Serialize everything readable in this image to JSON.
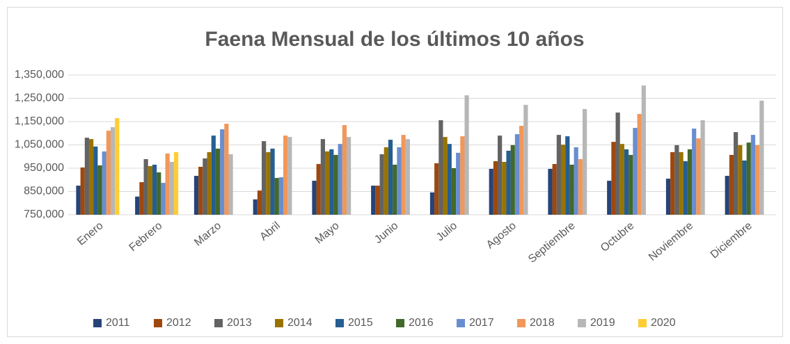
{
  "chart_data": {
    "type": "bar",
    "title": "Faena Mensual de los últimos 10 años",
    "categories": [
      "Enero",
      "Febrero",
      "Marzo",
      "Abril",
      "Mayo",
      "Junio",
      "Julio",
      "Agosto",
      "Septiembre",
      "Octubre",
      "Noviembre",
      "Diciembre"
    ],
    "series": [
      {
        "name": "2011",
        "color": "#264478",
        "values": [
          875000,
          828000,
          917000,
          816000,
          896000,
          875000,
          846000,
          947000,
          947000,
          896000,
          905000,
          917000
        ]
      },
      {
        "name": "2012",
        "color": "#9e480e",
        "values": [
          953000,
          890000,
          956000,
          854000,
          968000,
          875000,
          971000,
          980000,
          968000,
          1063000,
          1019000,
          1007000
        ]
      },
      {
        "name": "2013",
        "color": "#636363",
        "values": [
          1081000,
          989000,
          992000,
          1066000,
          1075000,
          1010000,
          1156000,
          1090000,
          1093000,
          1189000,
          1049000,
          1105000
        ]
      },
      {
        "name": "2014",
        "color": "#997300",
        "values": [
          1075000,
          959000,
          1019000,
          1019000,
          1022000,
          1040000,
          1084000,
          977000,
          1051000,
          1054000,
          1019000,
          1049000
        ]
      },
      {
        "name": "2015",
        "color": "#255e91",
        "values": [
          1043000,
          965000,
          1090000,
          1034000,
          1031000,
          1072000,
          1054000,
          1025000,
          1087000,
          1031000,
          980000,
          983000
        ]
      },
      {
        "name": "2016",
        "color": "#43682b",
        "values": [
          962000,
          932000,
          1034000,
          908000,
          1007000,
          965000,
          950000,
          1049000,
          965000,
          1007000,
          1031000,
          1060000
        ]
      },
      {
        "name": "2017",
        "color": "#698ed0",
        "values": [
          1022000,
          887000,
          1117000,
          911000,
          1054000,
          1040000,
          1016000,
          1096000,
          1040000,
          1123000,
          1120000,
          1093000
        ]
      },
      {
        "name": "2018",
        "color": "#f1975a",
        "values": [
          1111000,
          1013000,
          1141000,
          1090000,
          1135000,
          1093000,
          1087000,
          1132000,
          989000,
          1183000,
          1078000,
          1049000
        ]
      },
      {
        "name": "2019",
        "color": "#b7b7b7",
        "values": [
          1126000,
          977000,
          1010000,
          1084000,
          1084000,
          1075000,
          1263000,
          1222000,
          1204000,
          1305000,
          1156000,
          1240000
        ]
      },
      {
        "name": "2020",
        "color": "#ffcd33",
        "values": [
          1165000,
          1019000,
          null,
          null,
          null,
          null,
          null,
          null,
          null,
          null,
          null,
          null
        ]
      }
    ],
    "ylim": [
      750000,
      1350000
    ],
    "yticks": [
      {
        "value": 750000,
        "label": "750,000"
      },
      {
        "value": 850000,
        "label": "850,000"
      },
      {
        "value": 950000,
        "label": "950,000"
      },
      {
        "value": 1050000,
        "label": "1,050,000"
      },
      {
        "value": 1150000,
        "label": "1,150,000"
      },
      {
        "value": 1250000,
        "label": "1,250,000"
      },
      {
        "value": 1350000,
        "label": "1,350,000"
      }
    ],
    "grid": true,
    "legend": "bottom"
  }
}
